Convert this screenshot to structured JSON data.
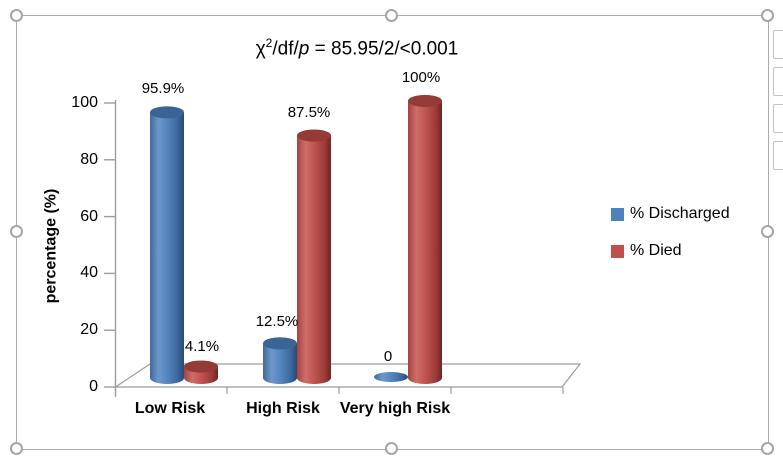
{
  "chart_title_parts": {
    "chi": "χ",
    "sup": "2",
    "mid": "/df/",
    "p": "p",
    "tail": " = 85.95/2/<0.001"
  },
  "chart_data": {
    "type": "bar",
    "subtype": "3d-cylinder",
    "title": "χ2/df/p = 85.95/2/<0.001",
    "categories": [
      "Low Risk",
      "High Risk",
      "Very high Risk"
    ],
    "series": [
      {
        "name": "% Discharged",
        "color": "#4F81BD",
        "values": [
          95.9,
          12.5,
          0
        ],
        "display_labels": [
          "95.9%",
          "12.5%",
          "0"
        ]
      },
      {
        "name": "% Died",
        "color": "#C0504D",
        "values": [
          4.1,
          87.5,
          100
        ],
        "display_labels": [
          "4.1%",
          "87.5%",
          "100%"
        ]
      }
    ],
    "xlabel": "",
    "ylabel": "percentage (%)",
    "ylim": [
      0,
      100
    ],
    "yticks": [
      0,
      20,
      40,
      60,
      80,
      100
    ],
    "grid": false,
    "legend": {
      "position": "right",
      "entries": [
        "% Discharged",
        "% Died"
      ]
    }
  },
  "colors": {
    "series_blue": "#4F81BD",
    "series_red": "#C0504D",
    "axis_gray": "#9c9c9c",
    "selection_border": "#ababab",
    "handle_stroke": "#a6a6a6",
    "background": "#ffffff"
  }
}
